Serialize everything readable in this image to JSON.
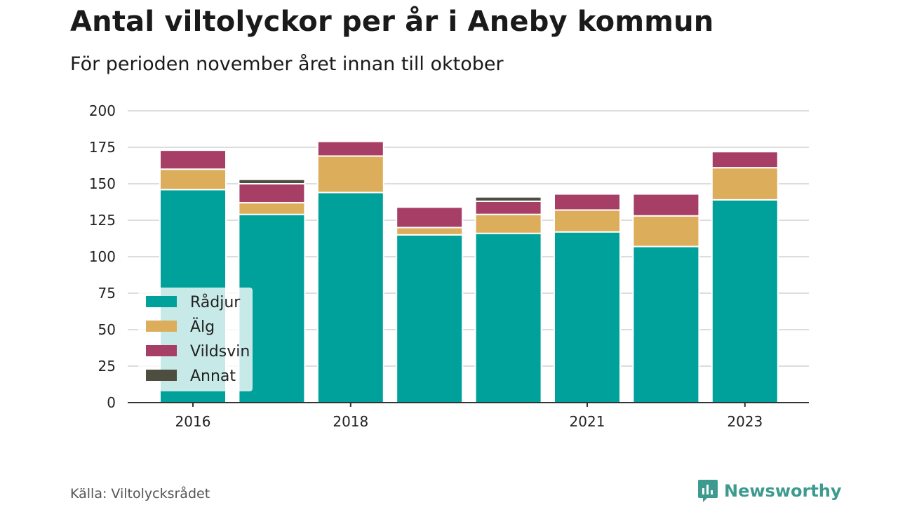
{
  "title": "Antal viltolyckor per år i Aneby kommun",
  "subtitle": "För perioden november året innan till oktober",
  "source": "Källa: Viltolycksrådet",
  "brand": {
    "name": "Newsworthy",
    "icon": "newsworthy-logo-icon"
  },
  "colors": {
    "Rådjur": "#00a19a",
    "Älg": "#dcad5a",
    "Vildsvin": "#a63e66",
    "Annat": "#4d4d40",
    "grid": "#dddddd",
    "axis": "#333333"
  },
  "chart_data": {
    "type": "bar",
    "stacked": true,
    "categories": [
      "2016",
      "2017",
      "2018",
      "2019",
      "2020",
      "2021",
      "2022",
      "2023"
    ],
    "x_tick_labels": [
      "2016",
      "",
      "2018",
      "",
      "",
      "2021",
      "",
      "2023"
    ],
    "ylim": [
      0,
      200
    ],
    "yticks": [
      0,
      25,
      50,
      75,
      100,
      125,
      150,
      175,
      200
    ],
    "grid": true,
    "legend_position": "bottom-left",
    "series": [
      {
        "name": "Rådjur",
        "values": [
          146,
          129,
          144,
          115,
          116,
          117,
          107,
          139
        ]
      },
      {
        "name": "Älg",
        "values": [
          14,
          8,
          25,
          5,
          13,
          15,
          21,
          22
        ]
      },
      {
        "name": "Vildsvin",
        "values": [
          13,
          13,
          10,
          14,
          9,
          11,
          15,
          11
        ]
      },
      {
        "name": "Annat",
        "values": [
          0,
          3,
          0,
          0,
          3,
          0,
          0,
          0
        ]
      }
    ]
  }
}
